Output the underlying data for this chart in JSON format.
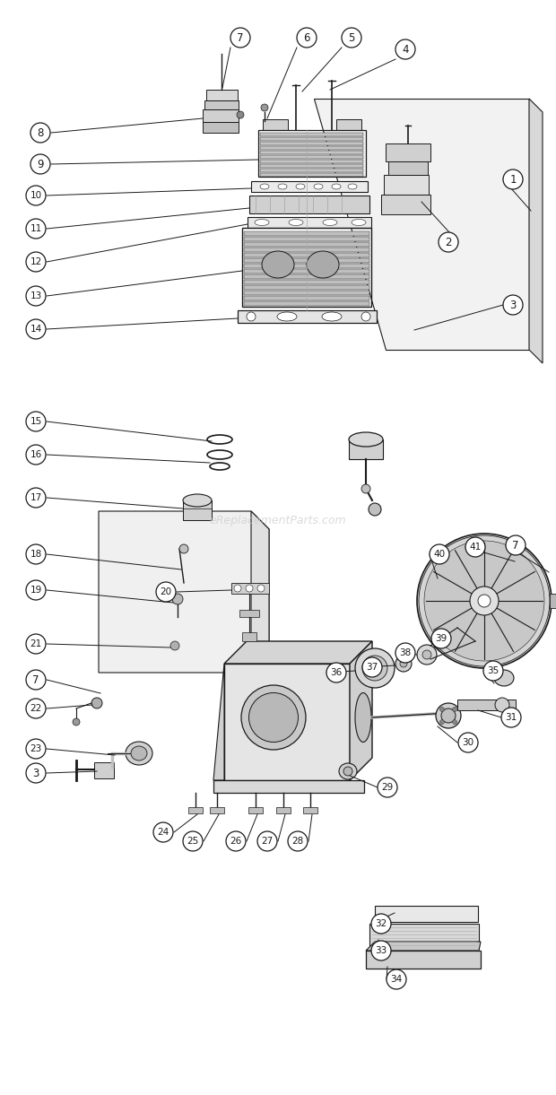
{
  "bg_color": "#ffffff",
  "line_color": "#1a1a1a",
  "fig_width": 6.2,
  "fig_height": 12.21,
  "watermark": "eReplacementParts.com",
  "watermark_color": "#cccccc"
}
